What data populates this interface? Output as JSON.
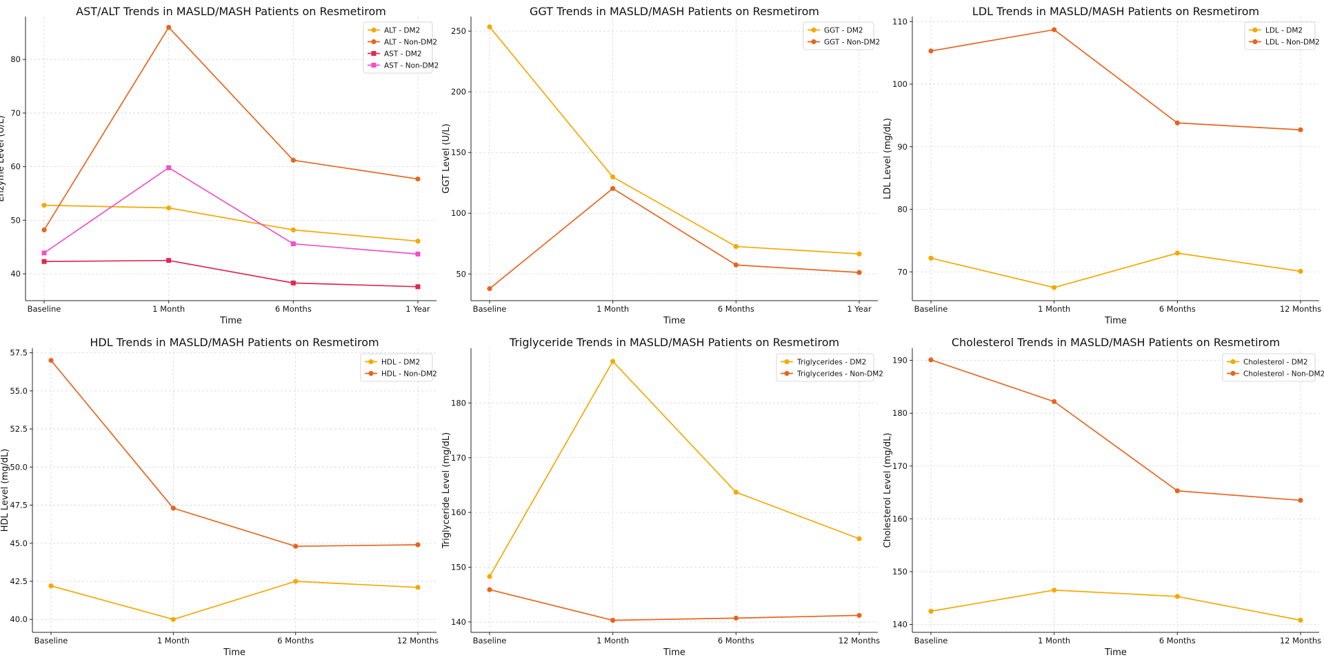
{
  "chart_data": [
    {
      "type": "line",
      "title": "AST/ALT Trends in MASLD/MASH Patients on Resmetirom",
      "xlabel": "Time",
      "ylabel": "Enzyme Level (U/L)",
      "categories": [
        "Baseline",
        "1 Month",
        "6 Months",
        "1 Year"
      ],
      "ylim": [
        35,
        88
      ],
      "yticks": [
        40,
        50,
        60,
        70,
        80
      ],
      "grid": true,
      "legend_position": "top-right",
      "series": [
        {
          "name": "ALT - DM2",
          "values": [
            52.8,
            52.3,
            48.2,
            46.1
          ],
          "color": "#f5a800",
          "marker": "circle"
        },
        {
          "name": "ALT - Non-DM2",
          "values": [
            48.2,
            86.0,
            61.2,
            57.7
          ],
          "color": "#e8641e",
          "marker": "circle"
        },
        {
          "name": "AST - DM2",
          "values": [
            42.3,
            42.5,
            38.3,
            37.6
          ],
          "color": "#e0284f",
          "marker": "square"
        },
        {
          "name": "AST - Non-DM2",
          "values": [
            43.9,
            59.8,
            45.6,
            43.7
          ],
          "color": "#f050c8",
          "marker": "square"
        }
      ]
    },
    {
      "type": "line",
      "title": "GGT Trends in MASLD/MASH Patients on Resmetirom",
      "xlabel": "Time",
      "ylabel": "GGT Level (U/L)",
      "categories": [
        "Baseline",
        "1 Month",
        "6 Months",
        "1 Year"
      ],
      "ylim": [
        28,
        262
      ],
      "yticks": [
        50,
        100,
        150,
        200,
        250
      ],
      "grid": true,
      "legend_position": "top-right",
      "series": [
        {
          "name": "GGT - DM2",
          "values": [
            253.5,
            129.9,
            72.6,
            66.5
          ],
          "color": "#f5a800",
          "marker": "circle"
        },
        {
          "name": "GGT - Non-DM2",
          "values": [
            37.9,
            120.4,
            57.4,
            51.2
          ],
          "color": "#e8641e",
          "marker": "circle"
        }
      ]
    },
    {
      "type": "line",
      "title": "LDL Trends in MASLD/MASH Patients on Resmetirom",
      "xlabel": "Time",
      "ylabel": "LDL Level (mg/dL)",
      "categories": [
        "Baseline",
        "1 Month",
        "6 Months",
        "12 Months"
      ],
      "ylim": [
        65.4,
        110.8
      ],
      "yticks": [
        70,
        80,
        90,
        100,
        110
      ],
      "grid": true,
      "legend_position": "top-right",
      "series": [
        {
          "name": "LDL - DM2",
          "values": [
            72.2,
            67.5,
            73.0,
            70.1
          ],
          "color": "#f5a800",
          "marker": "circle"
        },
        {
          "name": "LDL - Non-DM2",
          "values": [
            105.3,
            108.7,
            93.8,
            92.7
          ],
          "color": "#e8641e",
          "marker": "circle"
        }
      ]
    },
    {
      "type": "line",
      "title": "HDL Trends in MASLD/MASH Patients on Resmetirom",
      "xlabel": "Time",
      "ylabel": "HDL Level (mg/dL)",
      "categories": [
        "Baseline",
        "1 Month",
        "6 Months",
        "12 Months"
      ],
      "ylim": [
        39.15,
        57.8
      ],
      "yticks": [
        40.0,
        42.5,
        45.0,
        47.5,
        50.0,
        52.5,
        55.0,
        57.5
      ],
      "tick_decimals": 1,
      "grid": true,
      "legend_position": "top-right",
      "series": [
        {
          "name": "HDL - DM2",
          "values": [
            42.2,
            40.0,
            42.5,
            42.1
          ],
          "color": "#f5a800",
          "marker": "circle"
        },
        {
          "name": "HDL - Non-DM2",
          "values": [
            57.0,
            47.3,
            44.8,
            44.9
          ],
          "color": "#e8641e",
          "marker": "circle"
        }
      ]
    },
    {
      "type": "line",
      "title": "Triglyceride Trends in MASLD/MASH Patients on Resmetirom",
      "xlabel": "Time",
      "ylabel": "Triglyceride Level (mg/dL)",
      "categories": [
        "Baseline",
        "1 Month",
        "6 Months",
        "12 Months"
      ],
      "ylim": [
        138.1,
        190.0
      ],
      "yticks": [
        140,
        150,
        160,
        170,
        180
      ],
      "grid": true,
      "legend_position": "top-right",
      "series": [
        {
          "name": "Triglycerides - DM2",
          "values": [
            148.3,
            187.6,
            163.7,
            155.2
          ],
          "color": "#f5a800",
          "marker": "circle"
        },
        {
          "name": "Triglycerides - Non-DM2",
          "values": [
            145.9,
            140.3,
            140.7,
            141.2
          ],
          "color": "#e8641e",
          "marker": "circle"
        }
      ]
    },
    {
      "type": "line",
      "title": "Cholesterol Trends in MASLD/MASH Patients on Resmetirom",
      "xlabel": "Time",
      "ylabel": "Cholesterol Level (mg/dL)",
      "categories": [
        "Baseline",
        "1 Month",
        "6 Months",
        "12 Months"
      ],
      "ylim": [
        138.5,
        192.3
      ],
      "yticks": [
        140,
        150,
        160,
        170,
        180,
        190
      ],
      "grid": true,
      "legend_position": "top-right",
      "series": [
        {
          "name": "Cholesterol - DM2",
          "values": [
            142.5,
            146.5,
            145.3,
            140.8
          ],
          "color": "#f5a800",
          "marker": "circle"
        },
        {
          "name": "Cholesterol - Non-DM2",
          "values": [
            190.1,
            182.2,
            165.3,
            163.5
          ],
          "color": "#e8641e",
          "marker": "circle"
        }
      ]
    }
  ]
}
